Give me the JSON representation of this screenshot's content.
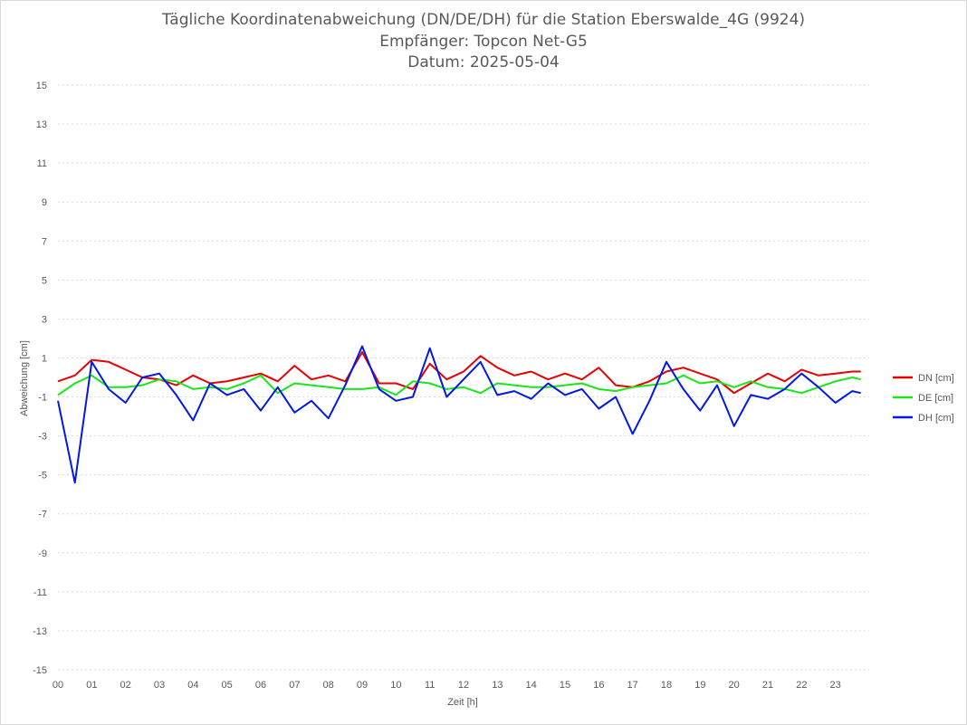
{
  "chart_data": {
    "type": "line",
    "title": "Tägliche Koordinatenabweichung (DN/DE/DH) für die Station Eberswalde_4G (9924)",
    "subtitle_1": "Empfänger: Topcon Net-G5",
    "subtitle_2": "Datum: 2025-05-04",
    "xlabel": "Zeit [h]",
    "ylabel": "Abweichung [cm]",
    "xlim": [
      0,
      24
    ],
    "ylim": [
      -15,
      15
    ],
    "x_ticks": [
      "00",
      "01",
      "02",
      "03",
      "04",
      "05",
      "06",
      "07",
      "08",
      "09",
      "10",
      "11",
      "12",
      "13",
      "14",
      "15",
      "16",
      "17",
      "18",
      "19",
      "20",
      "21",
      "22",
      "23"
    ],
    "y_ticks": [
      "15",
      "13",
      "11",
      "9",
      "7",
      "5",
      "3",
      "1",
      "-1",
      "-3",
      "-5",
      "-7",
      "-9",
      "-11",
      "-13",
      "-15"
    ],
    "grid": true,
    "legend_position": "right",
    "x": [
      0,
      0.5,
      1,
      1.5,
      2,
      2.5,
      3,
      3.5,
      4,
      4.5,
      5,
      5.5,
      6,
      6.5,
      7,
      7.5,
      8,
      8.5,
      9,
      9.5,
      10,
      10.5,
      11,
      11.5,
      12,
      12.5,
      13,
      13.5,
      14,
      14.5,
      15,
      15.5,
      16,
      16.5,
      17,
      17.5,
      18,
      18.5,
      19,
      19.5,
      20,
      20.5,
      21,
      21.5,
      22,
      22.5,
      23,
      23.5,
      23.75
    ],
    "series": [
      {
        "name": "DN [cm]",
        "color": "#e60000",
        "values": [
          -0.2,
          0.1,
          0.9,
          0.8,
          0.4,
          0,
          -0.1,
          -0.4,
          0.1,
          -0.3,
          -0.2,
          0,
          0.2,
          -0.2,
          0.6,
          -0.1,
          0.1,
          -0.2,
          1.3,
          -0.3,
          -0.3,
          -0.6,
          0.7,
          -0.1,
          0.3,
          1.1,
          0.5,
          0.1,
          0.3,
          -0.1,
          0.2,
          -0.1,
          0.5,
          -0.4,
          -0.5,
          -0.2,
          0.3,
          0.5,
          0.2,
          -0.1,
          -0.8,
          -0.3,
          0.2,
          -0.2,
          0.4,
          0.1,
          0.2,
          0.3,
          0.3
        ]
      },
      {
        "name": "DE [cm]",
        "color": "#19e619",
        "values": [
          -0.9,
          -0.3,
          0.1,
          -0.5,
          -0.5,
          -0.4,
          -0.1,
          -0.2,
          -0.6,
          -0.5,
          -0.6,
          -0.3,
          0.1,
          -0.8,
          -0.3,
          -0.4,
          -0.5,
          -0.6,
          -0.6,
          -0.5,
          -0.9,
          -0.2,
          -0.3,
          -0.6,
          -0.5,
          -0.8,
          -0.3,
          -0.4,
          -0.5,
          -0.5,
          -0.4,
          -0.3,
          -0.6,
          -0.7,
          -0.5,
          -0.4,
          -0.3,
          0.1,
          -0.3,
          -0.2,
          -0.5,
          -0.2,
          -0.5,
          -0.6,
          -0.8,
          -0.5,
          -0.2,
          0,
          -0.1
        ]
      },
      {
        "name": "DH [cm]",
        "color": "#0019e6",
        "values": [
          -1.2,
          -5.4,
          0.8,
          -0.6,
          -1.3,
          0,
          0.2,
          -0.9,
          -2.2,
          -0.3,
          -0.9,
          -0.6,
          -1.7,
          -0.5,
          -1.8,
          -1.2,
          -2.1,
          -0.4,
          1.6,
          -0.6,
          -1.2,
          -1.0,
          1.5,
          -1.0,
          -0.1,
          0.8,
          -0.9,
          -0.7,
          -1.1,
          -0.3,
          -0.9,
          -0.6,
          -1.6,
          -1.0,
          -2.9,
          -1.2,
          0.8,
          -0.6,
          -1.7,
          -0.4,
          -2.5,
          -0.9,
          -1.1,
          -0.6,
          0.2,
          -0.5,
          -1.3,
          -0.7,
          -0.8
        ]
      }
    ]
  }
}
